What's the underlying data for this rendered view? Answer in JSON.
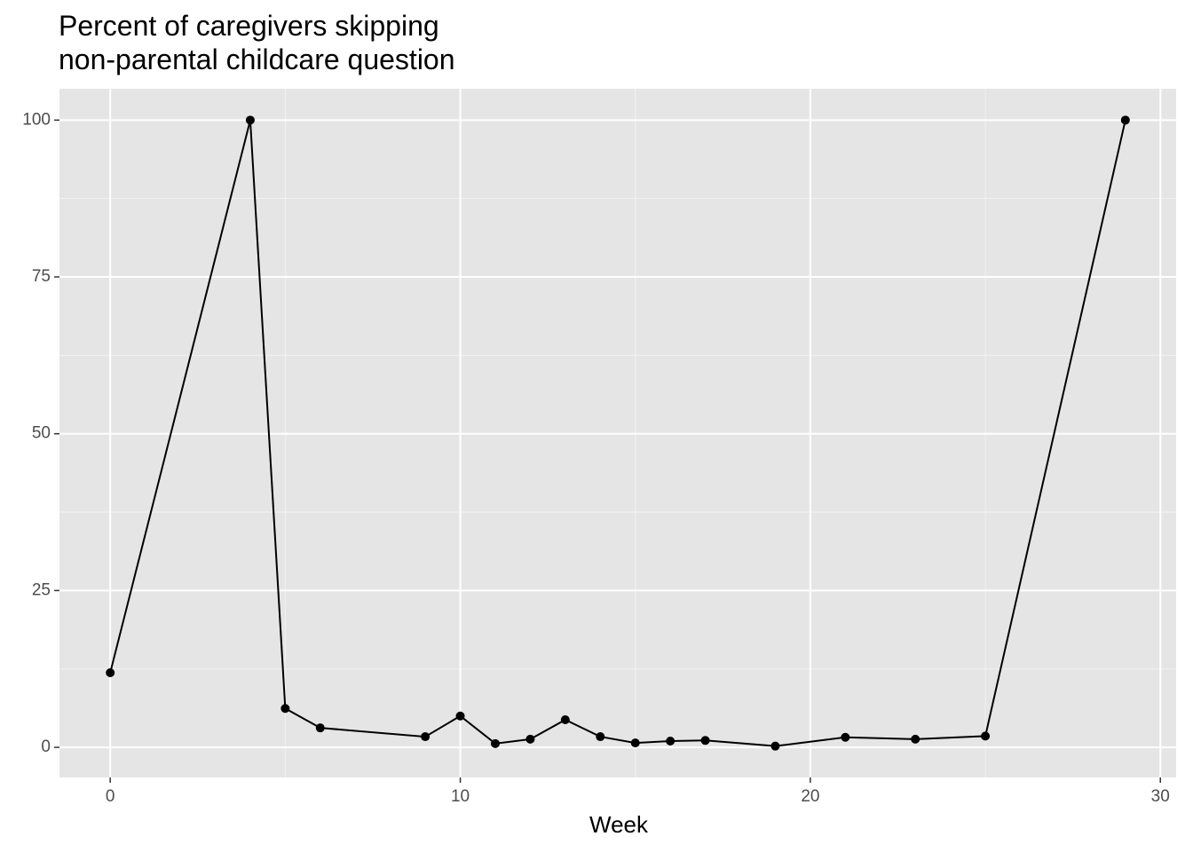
{
  "chart_data": {
    "type": "line",
    "title": [
      "Percent of caregivers skipping",
      "non-parental childcare question"
    ],
    "x_label": "Week",
    "x": [
      0,
      4,
      5,
      6,
      9,
      10,
      11,
      12,
      13,
      14,
      15,
      16,
      17,
      19,
      21,
      23,
      25,
      29
    ],
    "series": [
      {
        "color": "#000000",
        "values": [
          11.9,
          100,
          6.2,
          3.1,
          1.7,
          5.0,
          0.6,
          1.3,
          4.4,
          1.7,
          0.7,
          1.0,
          1.1,
          0.2,
          1.6,
          1.3,
          1.8,
          100
        ]
      }
    ],
    "xlim": [
      -1.45,
      30.45
    ],
    "ylim": [
      -4.8,
      105
    ],
    "xticks": [
      0,
      10,
      20,
      30
    ],
    "yticks": [
      0,
      25,
      50,
      75,
      100
    ],
    "grid": true
  }
}
